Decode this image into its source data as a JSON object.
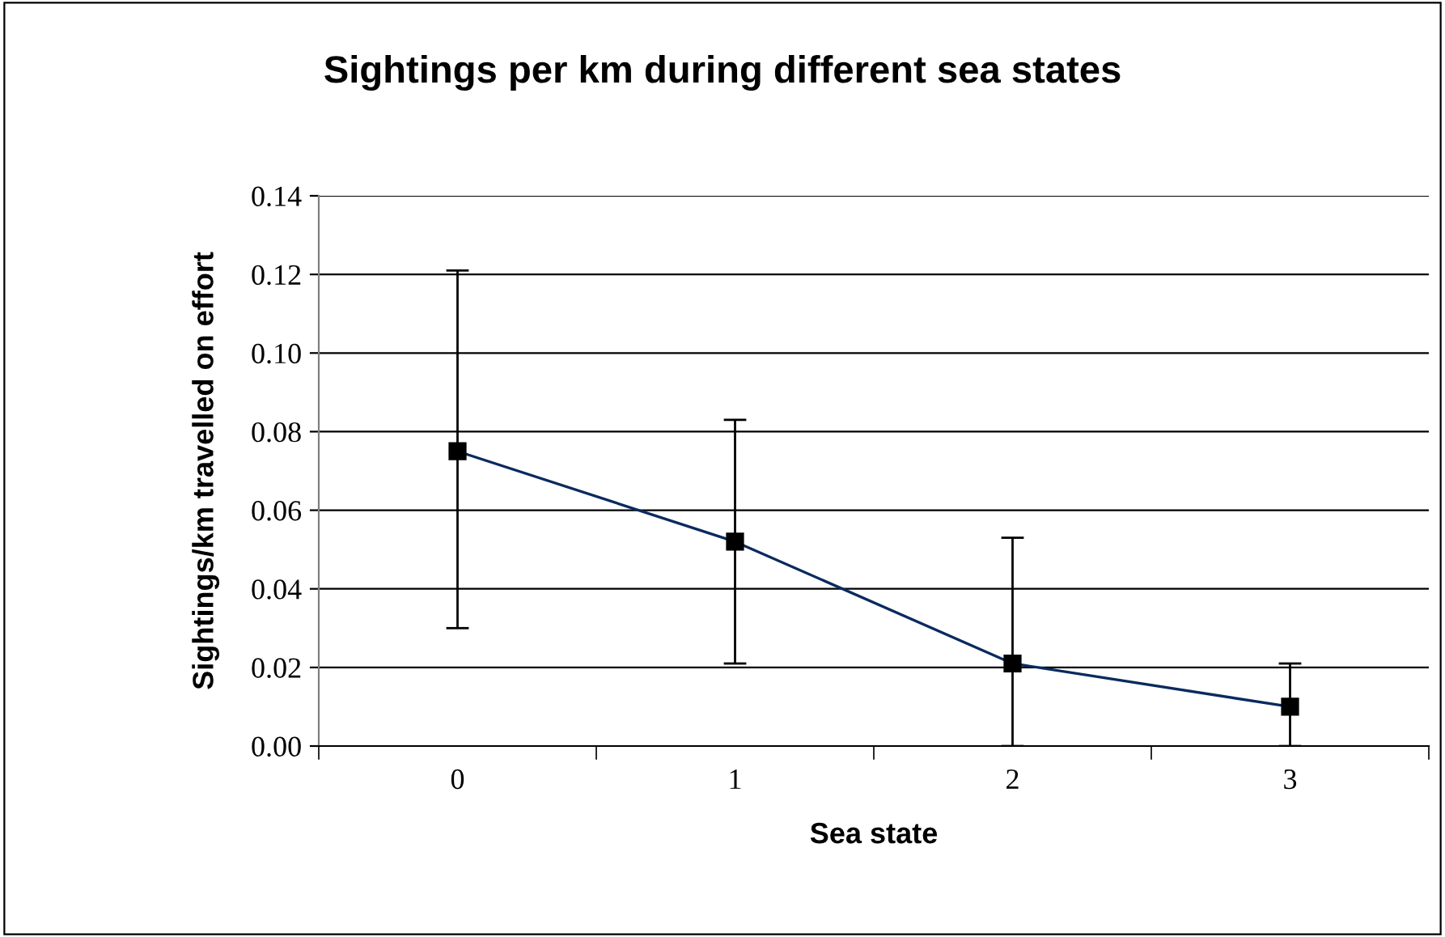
{
  "chart_data": {
    "type": "line",
    "title": "Sightings per km during different sea states",
    "xlabel": "Sea state",
    "ylabel": "Sightings/km travelled on effort",
    "categories": [
      "0",
      "1",
      "2",
      "3"
    ],
    "series": [
      {
        "color": "#0a2a5e",
        "values": [
          0.075,
          0.052,
          0.021,
          0.01
        ],
        "errors": [
          [
            0.03,
            0.121
          ],
          [
            0.021,
            0.083
          ],
          [
            0.0,
            0.053
          ],
          [
            0.0,
            0.021
          ]
        ]
      }
    ],
    "ylim": [
      0,
      0.14
    ],
    "yticks": [
      {
        "value": 0,
        "label": "0.00"
      },
      {
        "value": 0.02,
        "label": "0.02"
      },
      {
        "value": 0.04,
        "label": "0.04"
      },
      {
        "value": 0.06,
        "label": "0.06"
      },
      {
        "value": 0.08,
        "label": "0.08"
      },
      {
        "value": 0.1,
        "label": "0.10"
      },
      {
        "value": 0.12,
        "label": "0.12"
      },
      {
        "value": 0.14,
        "label": "0.14"
      }
    ],
    "grid": "y",
    "marker": "square",
    "line_style": "solid",
    "legend": false
  }
}
